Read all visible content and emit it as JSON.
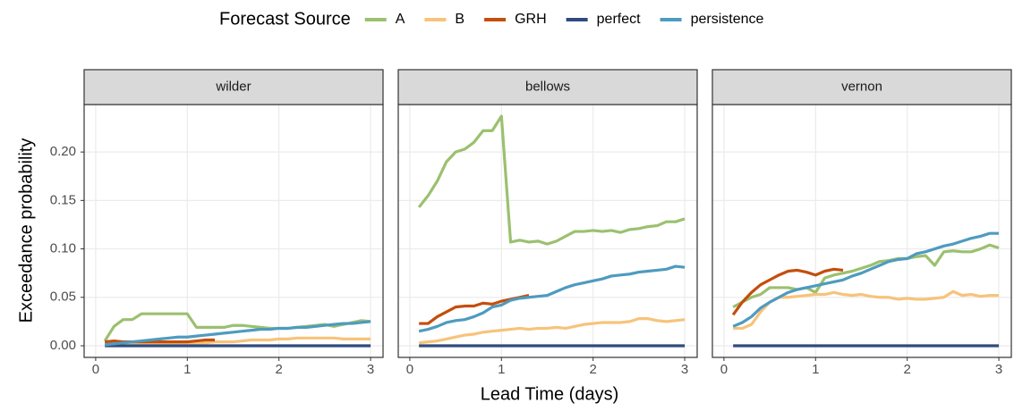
{
  "legend_title": "Forecast Source",
  "x_label": "Lead Time (days)",
  "y_label": "Exceedance probability",
  "chart_data": [
    {
      "type": "line",
      "title": "wilder",
      "x": [
        0.1,
        0.2,
        0.3,
        0.4,
        0.5,
        0.6,
        0.7,
        0.8,
        0.9,
        1.0,
        1.1,
        1.2,
        1.3,
        1.4,
        1.5,
        1.6,
        1.7,
        1.8,
        1.9,
        2.0,
        2.1,
        2.2,
        2.3,
        2.4,
        2.5,
        2.6,
        2.7,
        2.8,
        2.9,
        3.0
      ],
      "xlim": [
        -0.126,
        3.136
      ],
      "xticks": [
        0,
        1,
        2,
        3
      ],
      "ylim": [
        -0.012,
        0.249
      ],
      "yticks": [
        {
          "value": 0,
          "label": "0.00"
        },
        {
          "value": 0.05,
          "label": "0.05"
        },
        {
          "value": 0.1,
          "label": "0.10"
        },
        {
          "value": 0.15,
          "label": "0.15"
        },
        {
          "value": 0.2,
          "label": "0.20"
        }
      ],
      "grid": true,
      "series": [
        {
          "name": "A",
          "color": "#9bc06f",
          "values": [
            0.005,
            0.02,
            0.027,
            0.027,
            0.033,
            0.033,
            0.033,
            0.033,
            0.033,
            0.033,
            0.019,
            0.019,
            0.019,
            0.019,
            0.021,
            0.021,
            0.02,
            0.019,
            0.018,
            0.018,
            0.018,
            0.019,
            0.02,
            0.021,
            0.022,
            0.02,
            0.022,
            0.024,
            0.026,
            0.025
          ]
        },
        {
          "name": "B",
          "color": "#f7c37a",
          "values": [
            0.003,
            0.003,
            0.003,
            0.003,
            0.003,
            0.003,
            0.003,
            0.003,
            0.003,
            0.003,
            0.003,
            0.003,
            0.004,
            0.004,
            0.004,
            0.005,
            0.006,
            0.006,
            0.006,
            0.007,
            0.007,
            0.008,
            0.008,
            0.008,
            0.008,
            0.008,
            0.007,
            0.007,
            0.007,
            0.007
          ]
        },
        {
          "name": "GRH",
          "color": "#c44e0c",
          "values": [
            0.004,
            0.005,
            0.004,
            0.004,
            0.004,
            0.004,
            0.004,
            0.004,
            0.004,
            0.004,
            0.005,
            0.006,
            0.006,
            null,
            null,
            null,
            null,
            null,
            null,
            null,
            null,
            null,
            null,
            null,
            null,
            null,
            null,
            null,
            null,
            null
          ]
        },
        {
          "name": "perfect",
          "color": "#2f4b7e",
          "values": [
            0,
            0,
            0,
            0,
            0,
            0,
            0,
            0,
            0,
            0,
            0,
            0,
            0,
            0,
            0,
            0,
            0,
            0,
            0,
            0,
            0,
            0,
            0,
            0,
            0,
            0,
            0,
            0,
            0,
            0
          ]
        },
        {
          "name": "persistence",
          "color": "#4e9bbf",
          "values": [
            0.001,
            0.002,
            0.003,
            0.004,
            0.005,
            0.006,
            0.007,
            0.008,
            0.009,
            0.009,
            0.01,
            0.011,
            0.012,
            0.013,
            0.014,
            0.015,
            0.016,
            0.017,
            0.017,
            0.018,
            0.018,
            0.019,
            0.019,
            0.02,
            0.021,
            0.022,
            0.023,
            0.023,
            0.024,
            0.025
          ]
        }
      ]
    },
    {
      "type": "line",
      "title": "bellows",
      "x": [
        0.1,
        0.2,
        0.3,
        0.4,
        0.5,
        0.6,
        0.7,
        0.8,
        0.9,
        1.0,
        1.1,
        1.2,
        1.3,
        1.4,
        1.5,
        1.6,
        1.7,
        1.8,
        1.9,
        2.0,
        2.1,
        2.2,
        2.3,
        2.4,
        2.5,
        2.6,
        2.7,
        2.8,
        2.9,
        3.0
      ],
      "xlim": [
        -0.126,
        3.136
      ],
      "xticks": [
        0,
        1,
        2,
        3
      ],
      "ylim": [
        -0.012,
        0.249
      ],
      "yticks": [
        0,
        0.05,
        0.1,
        0.15,
        0.2
      ],
      "grid": true,
      "series": [
        {
          "name": "A",
          "color": "#9bc06f",
          "values": [
            0.143,
            0.155,
            0.17,
            0.19,
            0.2,
            0.203,
            0.21,
            0.222,
            0.222,
            0.237,
            0.107,
            0.109,
            0.107,
            0.108,
            0.105,
            0.108,
            0.113,
            0.118,
            0.118,
            0.119,
            0.118,
            0.119,
            0.117,
            0.12,
            0.121,
            0.123,
            0.124,
            0.128,
            0.128,
            0.131
          ]
        },
        {
          "name": "B",
          "color": "#f7c37a",
          "values": [
            0.003,
            0.004,
            0.005,
            0.007,
            0.009,
            0.011,
            0.012,
            0.014,
            0.015,
            0.016,
            0.017,
            0.018,
            0.017,
            0.018,
            0.018,
            0.019,
            0.018,
            0.02,
            0.022,
            0.023,
            0.024,
            0.024,
            0.024,
            0.025,
            0.028,
            0.028,
            0.026,
            0.025,
            0.026,
            0.027
          ]
        },
        {
          "name": "GRH",
          "color": "#c44e0c",
          "values": [
            0.023,
            0.023,
            0.03,
            0.035,
            0.04,
            0.041,
            0.041,
            0.044,
            0.043,
            0.046,
            0.048,
            0.05,
            0.052,
            null,
            null,
            null,
            null,
            null,
            null,
            null,
            null,
            null,
            null,
            null,
            null,
            null,
            null,
            null,
            null,
            null
          ]
        },
        {
          "name": "perfect",
          "color": "#2f4b7e",
          "values": [
            0,
            0,
            0,
            0,
            0,
            0,
            0,
            0,
            0,
            0,
            0,
            0,
            0,
            0,
            0,
            0,
            0,
            0,
            0,
            0,
            0,
            0,
            0,
            0,
            0,
            0,
            0,
            0,
            0,
            0
          ]
        },
        {
          "name": "persistence",
          "color": "#4e9bbf",
          "values": [
            0.015,
            0.017,
            0.02,
            0.024,
            0.026,
            0.027,
            0.03,
            0.034,
            0.04,
            0.042,
            0.047,
            0.049,
            0.05,
            0.051,
            0.052,
            0.056,
            0.06,
            0.063,
            0.065,
            0.067,
            0.069,
            0.072,
            0.073,
            0.074,
            0.076,
            0.077,
            0.078,
            0.079,
            0.082,
            0.081
          ]
        }
      ]
    },
    {
      "type": "line",
      "title": "vernon",
      "x": [
        0.1,
        0.2,
        0.3,
        0.4,
        0.5,
        0.6,
        0.7,
        0.8,
        0.9,
        1.0,
        1.1,
        1.2,
        1.3,
        1.4,
        1.5,
        1.6,
        1.7,
        1.8,
        1.9,
        2.0,
        2.1,
        2.2,
        2.3,
        2.4,
        2.5,
        2.6,
        2.7,
        2.8,
        2.9,
        3.0
      ],
      "xlim": [
        -0.126,
        3.136
      ],
      "xticks": [
        0,
        1,
        2,
        3
      ],
      "ylim": [
        -0.012,
        0.249
      ],
      "yticks": [
        0,
        0.05,
        0.1,
        0.15,
        0.2
      ],
      "grid": true,
      "series": [
        {
          "name": "A",
          "color": "#9bc06f",
          "values": [
            0.04,
            0.045,
            0.05,
            0.053,
            0.06,
            0.06,
            0.06,
            0.058,
            0.06,
            0.055,
            0.07,
            0.073,
            0.075,
            0.077,
            0.08,
            0.083,
            0.087,
            0.088,
            0.09,
            0.09,
            0.092,
            0.093,
            0.083,
            0.097,
            0.098,
            0.097,
            0.097,
            0.1,
            0.104,
            0.101
          ]
        },
        {
          "name": "B",
          "color": "#f7c37a",
          "values": [
            0.018,
            0.018,
            0.022,
            0.035,
            0.045,
            0.05,
            0.05,
            0.051,
            0.052,
            0.053,
            0.053,
            0.055,
            0.053,
            0.052,
            0.053,
            0.051,
            0.05,
            0.05,
            0.048,
            0.049,
            0.048,
            0.048,
            0.049,
            0.05,
            0.056,
            0.052,
            0.053,
            0.051,
            0.052,
            0.052
          ]
        },
        {
          "name": "GRH",
          "color": "#c44e0c",
          "values": [
            0.032,
            0.045,
            0.055,
            0.063,
            0.068,
            0.073,
            0.077,
            0.078,
            0.076,
            0.073,
            0.077,
            0.079,
            0.078,
            null,
            null,
            null,
            null,
            null,
            null,
            null,
            null,
            null,
            null,
            null,
            null,
            null,
            null,
            null,
            null,
            null
          ]
        },
        {
          "name": "perfect",
          "color": "#2f4b7e",
          "values": [
            0,
            0,
            0,
            0,
            0,
            0,
            0,
            0,
            0,
            0,
            0,
            0,
            0,
            0,
            0,
            0,
            0,
            0,
            0,
            0,
            0,
            0,
            0,
            0,
            0,
            0,
            0,
            0,
            0,
            0
          ]
        },
        {
          "name": "persistence",
          "color": "#4e9bbf",
          "values": [
            0.02,
            0.024,
            0.03,
            0.039,
            0.045,
            0.05,
            0.055,
            0.058,
            0.06,
            0.062,
            0.064,
            0.066,
            0.068,
            0.072,
            0.075,
            0.079,
            0.083,
            0.087,
            0.089,
            0.09,
            0.095,
            0.097,
            0.1,
            0.103,
            0.105,
            0.108,
            0.111,
            0.113,
            0.116,
            0.116
          ]
        }
      ]
    }
  ]
}
